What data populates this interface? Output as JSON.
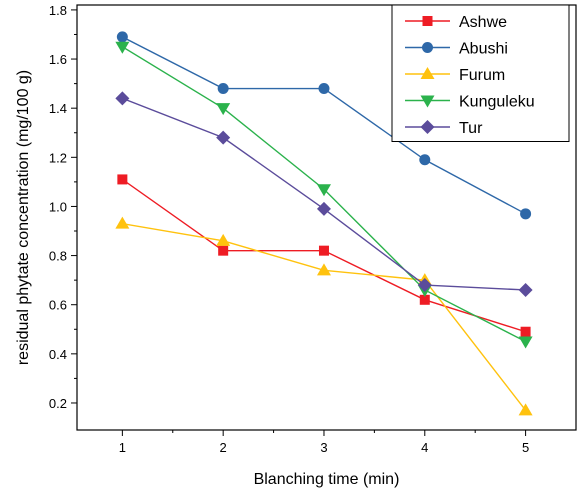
{
  "chart_data": {
    "type": "line",
    "xlabel": "Blanching time (min)",
    "ylabel": "residual phytate concentration (mg/100 g)",
    "x": [
      1,
      2,
      3,
      4,
      5
    ],
    "x_ticks": [
      "1",
      "2",
      "3",
      "4",
      "5"
    ],
    "xlim": [
      0.55,
      5.5
    ],
    "ylim": [
      0.09,
      1.82
    ],
    "y_ticks": [
      "0.2",
      "0.4",
      "0.6",
      "0.8",
      "1.0",
      "1.2",
      "1.4",
      "1.6",
      "1.8"
    ],
    "y_tick_values": [
      0.2,
      0.4,
      0.6,
      0.8,
      1.0,
      1.2,
      1.4,
      1.6,
      1.8
    ],
    "grid": false,
    "legend_position": "top-right",
    "series": [
      {
        "name": "Ashwe",
        "color": "#ee1c24",
        "marker": "square",
        "values": [
          1.11,
          0.82,
          0.82,
          0.62,
          0.49
        ]
      },
      {
        "name": "Abushi",
        "color": "#2e68a8",
        "marker": "circle",
        "values": [
          1.69,
          1.48,
          1.48,
          1.19,
          0.97
        ]
      },
      {
        "name": "Furum",
        "color": "#ffc20e",
        "marker": "triangle-up",
        "values": [
          0.93,
          0.86,
          0.74,
          0.7,
          0.17
        ]
      },
      {
        "name": "Kunguleku",
        "color": "#2bb24c",
        "marker": "triangle-down",
        "values": [
          1.65,
          1.4,
          1.07,
          0.66,
          0.45
        ]
      },
      {
        "name": "Tur",
        "color": "#5b4c9b",
        "marker": "diamond",
        "values": [
          1.44,
          1.28,
          0.99,
          0.68,
          0.66
        ]
      }
    ]
  }
}
